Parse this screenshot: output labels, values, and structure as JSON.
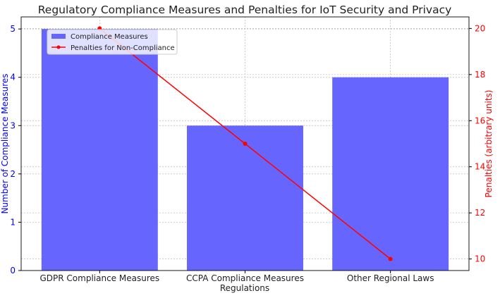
{
  "chart_data": {
    "type": "bar",
    "title": "Regulatory Compliance Measures and Penalties for IoT Security and Privacy",
    "xlabel": "Regulations",
    "ylabel": "Number of Compliance Measures",
    "ylabel_right": "Penalties (arbitrary units)",
    "categories": [
      "GDPR Compliance Measures",
      "CCPA Compliance Measures",
      "Other Regional Laws"
    ],
    "series": [
      {
        "name": "Compliance Measures",
        "type": "bar",
        "axis": "left",
        "values": [
          5,
          3,
          4
        ],
        "color": "#6666ff"
      },
      {
        "name": "Penalties for Non-Compliance",
        "type": "line",
        "axis": "right",
        "values": [
          20,
          15,
          10
        ],
        "color": "#ff0000"
      }
    ],
    "ylim": [
      0,
      5.25
    ],
    "ylim_right": [
      9.5,
      20.5
    ],
    "yticks": [
      0,
      1,
      2,
      3,
      4,
      5
    ],
    "yticks_right": [
      10,
      12,
      14,
      16,
      18,
      20
    ],
    "left_axis_color": "#0000ff",
    "right_axis_color": "#ff0000",
    "grid": true,
    "legend_position": "top-left"
  }
}
